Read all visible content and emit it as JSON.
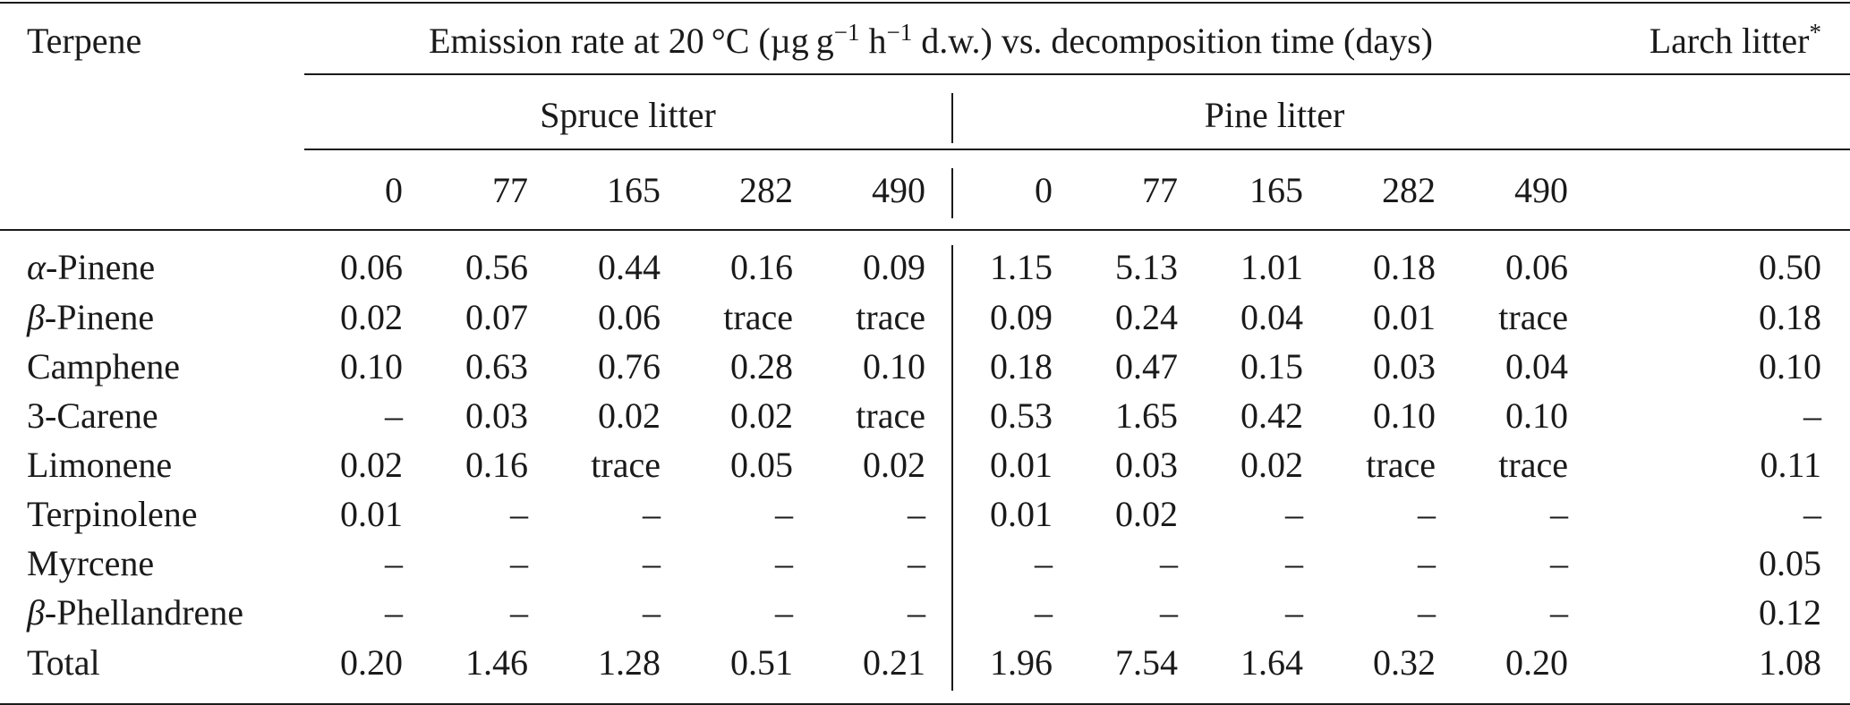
{
  "header": {
    "terpene_label": "Terpene",
    "emission_pre": "Emission rate at 20 °C (µg g",
    "emission_exp1": "−1",
    "emission_mid": " h",
    "emission_exp2": "−1",
    "emission_post": " d.w.) vs. decomposition time (days)",
    "larch_label": "Larch litter",
    "larch_mark": "*",
    "spruce_label": "Spruce litter",
    "pine_label": "Pine litter",
    "spruce_days": [
      "0",
      "77",
      "165",
      "282",
      "490"
    ],
    "pine_days": [
      "0",
      "77",
      "165",
      "282",
      "490"
    ]
  },
  "rows": [
    {
      "prefix": "α",
      "name": "-Pinene",
      "spruce": [
        "0.06",
        "0.56",
        "0.44",
        "0.16",
        "0.09"
      ],
      "pine": [
        "1.15",
        "5.13",
        "1.01",
        "0.18",
        "0.06"
      ],
      "larch": "0.50"
    },
    {
      "prefix": "β",
      "name": "-Pinene",
      "spruce": [
        "0.02",
        "0.07",
        "0.06",
        "trace",
        "trace"
      ],
      "pine": [
        "0.09",
        "0.24",
        "0.04",
        "0.01",
        "trace"
      ],
      "larch": "0.18"
    },
    {
      "prefix": "",
      "name": "Camphene",
      "spruce": [
        "0.10",
        "0.63",
        "0.76",
        "0.28",
        "0.10"
      ],
      "pine": [
        "0.18",
        "0.47",
        "0.15",
        "0.03",
        "0.04"
      ],
      "larch": "0.10"
    },
    {
      "prefix": "",
      "name": "3-Carene",
      "spruce": [
        "–",
        "0.03",
        "0.02",
        "0.02",
        "trace"
      ],
      "pine": [
        "0.53",
        "1.65",
        "0.42",
        "0.10",
        "0.10"
      ],
      "larch": "–"
    },
    {
      "prefix": "",
      "name": "Limonene",
      "spruce": [
        "0.02",
        "0.16",
        "trace",
        "0.05",
        "0.02"
      ],
      "pine": [
        "0.01",
        "0.03",
        "0.02",
        "trace",
        "trace"
      ],
      "larch": "0.11"
    },
    {
      "prefix": "",
      "name": "Terpinolene",
      "spruce": [
        "0.01",
        "–",
        "–",
        "–",
        "–"
      ],
      "pine": [
        "0.01",
        "0.02",
        "–",
        "–",
        "–"
      ],
      "larch": "–"
    },
    {
      "prefix": "",
      "name": "Myrcene",
      "spruce": [
        "–",
        "–",
        "–",
        "–",
        "–"
      ],
      "pine": [
        "–",
        "–",
        "–",
        "–",
        "–"
      ],
      "larch": "0.05"
    },
    {
      "prefix": "β",
      "name": "-Phellandrene",
      "spruce": [
        "–",
        "–",
        "–",
        "–",
        "–"
      ],
      "pine": [
        "–",
        "–",
        "–",
        "–",
        "–"
      ],
      "larch": "0.12"
    },
    {
      "prefix": "",
      "name": "Total",
      "spruce": [
        "0.20",
        "1.46",
        "1.28",
        "0.51",
        "0.21"
      ],
      "pine": [
        "1.96",
        "7.54",
        "1.64",
        "0.32",
        "0.20"
      ],
      "larch": "1.08"
    }
  ]
}
